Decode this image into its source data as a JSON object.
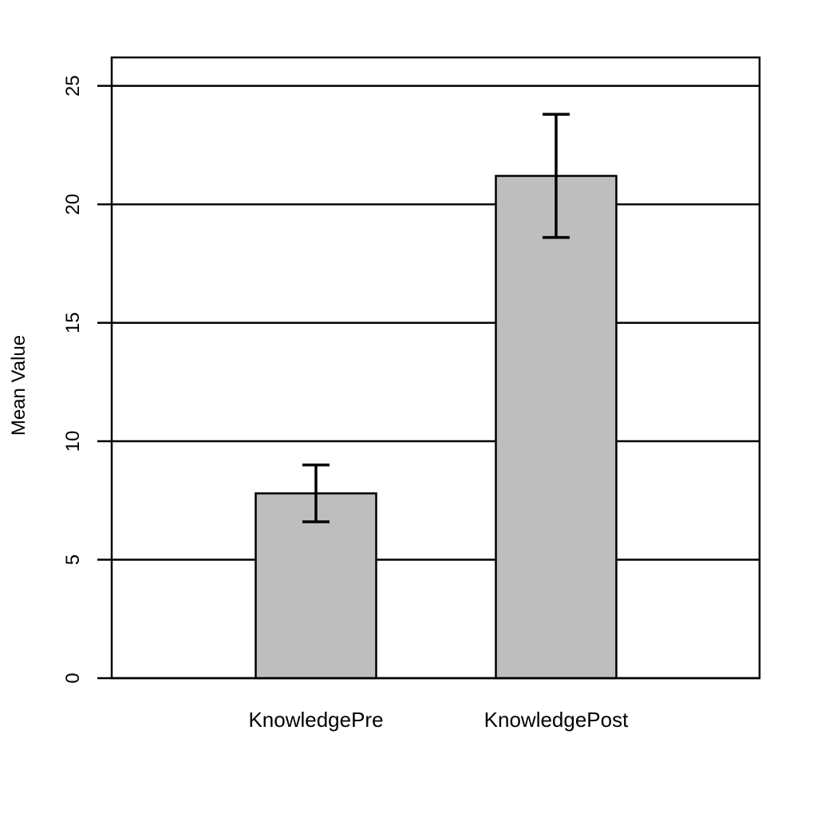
{
  "chart_data": {
    "type": "bar",
    "title": "",
    "xlabel": "",
    "ylabel": "Mean Value",
    "categories": [
      "KnowledgePre",
      "KnowledgePost"
    ],
    "values": [
      7.8,
      21.2
    ],
    "error_low": [
      6.6,
      18.6
    ],
    "error_high": [
      9.0,
      23.8
    ],
    "ylim": [
      0,
      26.2
    ],
    "yticks": [
      0,
      5,
      10,
      15,
      20,
      25
    ],
    "grid": "horizontal",
    "legend": "none",
    "colors": {
      "bar_fill": "#bebebe",
      "bar_stroke": "#000000",
      "gridline": "#000000",
      "error_bar": "#000000",
      "background": "#ffffff"
    }
  }
}
